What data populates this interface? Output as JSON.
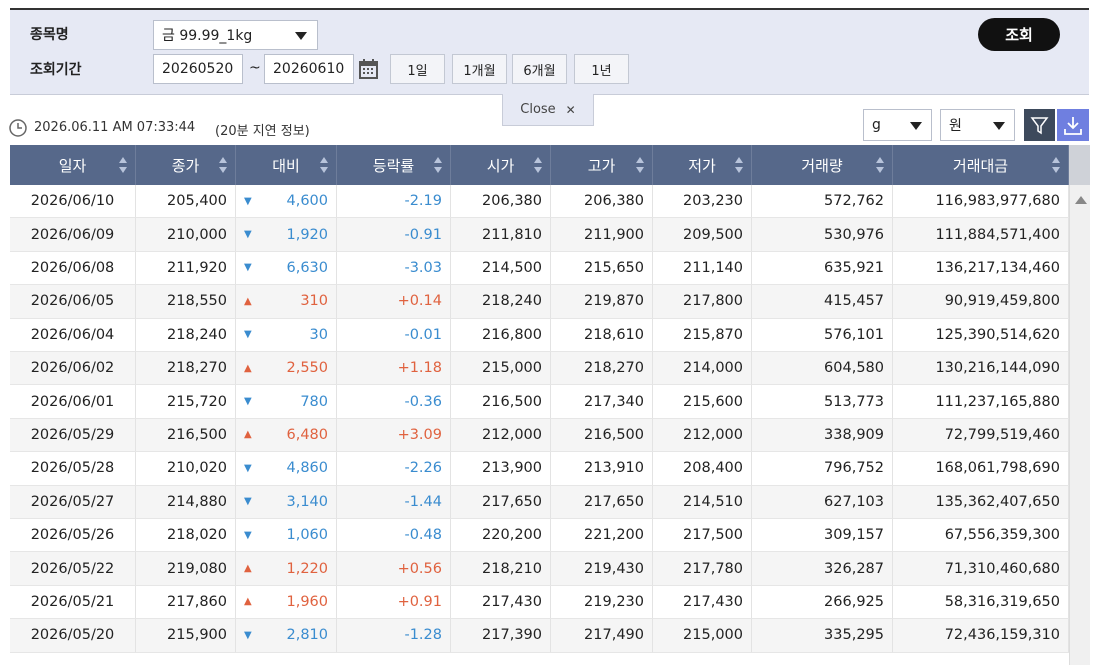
{
  "search": {
    "item_label": "종목명",
    "item_value": "금 99.99_1kg",
    "period_label": "조회기간",
    "start": "20260520",
    "tilde": "~",
    "end": "20260610",
    "buttons": [
      "1일",
      "1개월",
      "6개월",
      "1년"
    ],
    "submit": "조회",
    "close": "Close"
  },
  "status": {
    "timestamp": "2026.06.11 AM 07:33:44",
    "delay_note": "(20분 지연 정보)",
    "unit": "g",
    "currency": "원"
  },
  "table": {
    "colors": {
      "up": "#e0623f",
      "down": "#3a8ccf"
    },
    "columns": [
      "일자",
      "종가",
      "대비",
      "등락률",
      "시가",
      "고가",
      "저가",
      "거래량",
      "거래대금"
    ],
    "rows": [
      {
        "trend": "down",
        "cells": [
          "2026/06/10",
          "205,400",
          "▼",
          "4,600",
          "-2.19",
          "206,380",
          "206,380",
          "203,230",
          "572,762",
          "116,983,977,680"
        ]
      },
      {
        "trend": "down",
        "cells": [
          "2026/06/09",
          "210,000",
          "▼",
          "1,920",
          "-0.91",
          "211,810",
          "211,900",
          "209,500",
          "530,976",
          "111,884,571,400"
        ]
      },
      {
        "trend": "down",
        "cells": [
          "2026/06/08",
          "211,920",
          "▼",
          "6,630",
          "-3.03",
          "214,500",
          "215,650",
          "211,140",
          "635,921",
          "136,217,134,460"
        ]
      },
      {
        "trend": "up",
        "cells": [
          "2026/06/05",
          "218,550",
          "▲",
          "310",
          "+0.14",
          "218,240",
          "219,870",
          "217,800",
          "415,457",
          "90,919,459,800"
        ]
      },
      {
        "trend": "down",
        "cells": [
          "2026/06/04",
          "218,240",
          "▼",
          "30",
          "-0.01",
          "216,800",
          "218,610",
          "215,870",
          "576,101",
          "125,390,514,620"
        ]
      },
      {
        "trend": "up",
        "cells": [
          "2026/06/02",
          "218,270",
          "▲",
          "2,550",
          "+1.18",
          "215,000",
          "218,270",
          "214,000",
          "604,580",
          "130,216,144,090"
        ]
      },
      {
        "trend": "down",
        "cells": [
          "2026/06/01",
          "215,720",
          "▼",
          "780",
          "-0.36",
          "216,500",
          "217,340",
          "215,600",
          "513,773",
          "111,237,165,880"
        ]
      },
      {
        "trend": "up",
        "cells": [
          "2026/05/29",
          "216,500",
          "▲",
          "6,480",
          "+3.09",
          "212,000",
          "216,500",
          "212,000",
          "338,909",
          "72,799,519,460"
        ]
      },
      {
        "trend": "down",
        "cells": [
          "2026/05/28",
          "210,020",
          "▼",
          "4,860",
          "-2.26",
          "213,900",
          "213,910",
          "208,400",
          "796,752",
          "168,061,798,690"
        ]
      },
      {
        "trend": "down",
        "cells": [
          "2026/05/27",
          "214,880",
          "▼",
          "3,140",
          "-1.44",
          "217,650",
          "217,650",
          "214,510",
          "627,103",
          "135,362,407,650"
        ]
      },
      {
        "trend": "down",
        "cells": [
          "2026/05/26",
          "218,020",
          "▼",
          "1,060",
          "-0.48",
          "220,200",
          "221,200",
          "217,500",
          "309,157",
          "67,556,359,300"
        ]
      },
      {
        "trend": "up",
        "cells": [
          "2026/05/22",
          "219,080",
          "▲",
          "1,220",
          "+0.56",
          "218,210",
          "219,430",
          "217,780",
          "326,287",
          "71,310,460,680"
        ]
      },
      {
        "trend": "up",
        "cells": [
          "2026/05/21",
          "217,860",
          "▲",
          "1,960",
          "+0.91",
          "217,430",
          "219,230",
          "217,430",
          "266,925",
          "58,316,319,650"
        ]
      },
      {
        "trend": "down",
        "cells": [
          "2026/05/20",
          "215,900",
          "▼",
          "2,810",
          "-1.28",
          "217,390",
          "217,490",
          "215,000",
          "335,295",
          "72,436,159,310"
        ]
      }
    ]
  }
}
